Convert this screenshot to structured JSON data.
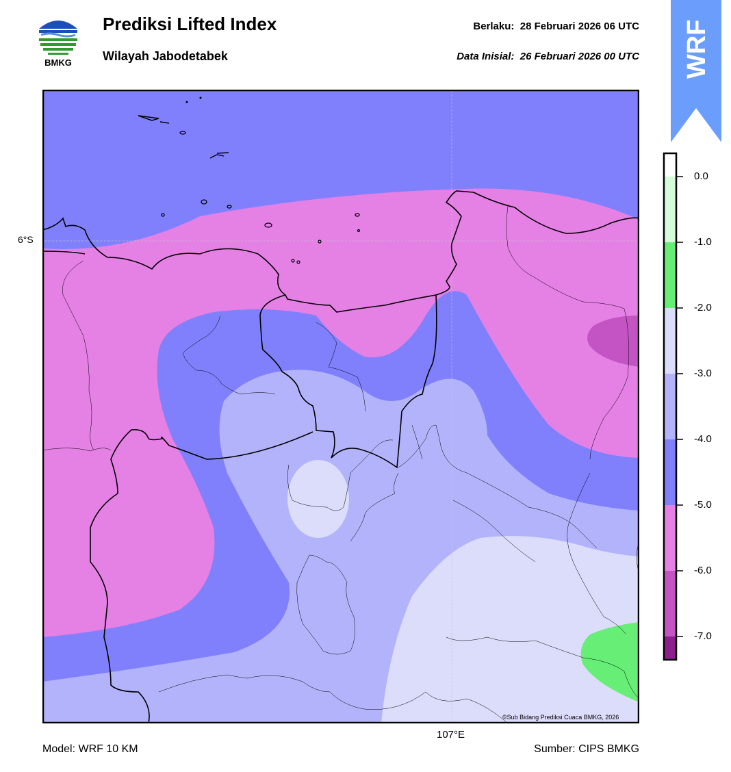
{
  "header": {
    "logo_text": "BMKG",
    "title": "Prediksi Lifted Index",
    "subtitle": "Wilayah Jabodetabek",
    "valid_label": "Berlaku:",
    "valid_time": "28 Februari 2026 06 UTC",
    "init_label": "Data Inisial:",
    "init_time": "26 Februari 2026 00 UTC"
  },
  "badge": {
    "text": "WRF",
    "color": "#6b9dfc"
  },
  "map": {
    "lat_label": "6°S",
    "lon_label": "107°E",
    "credit": "©Sub Bidang Prediksi Cuaca BMKG, 2026"
  },
  "colorbar": {
    "ticks": [
      "0.0",
      "-1.0",
      "-2.0",
      "-3.0",
      "-4.0",
      "-5.0",
      "-6.0",
      "-7.0"
    ],
    "levels": [
      {
        "range": "0 to -1",
        "color": "#d4fcd8"
      },
      {
        "range": "-1 to -2",
        "color": "#66ee77"
      },
      {
        "range": "-2 to -3",
        "color": "#dcdcfb"
      },
      {
        "range": "-3 to -4",
        "color": "#b3b3fc"
      },
      {
        "range": "-4 to -5",
        "color": "#8080fc"
      },
      {
        "range": "-5 to -6",
        "color": "#e580e5"
      },
      {
        "range": "-6 to -7",
        "color": "#c454c4"
      },
      {
        "range": "< -7",
        "color": "#8c1f8c"
      }
    ]
  },
  "footer": {
    "model": "Model: WRF 10 KM",
    "source": "Sumber: CIPS BMKG"
  }
}
